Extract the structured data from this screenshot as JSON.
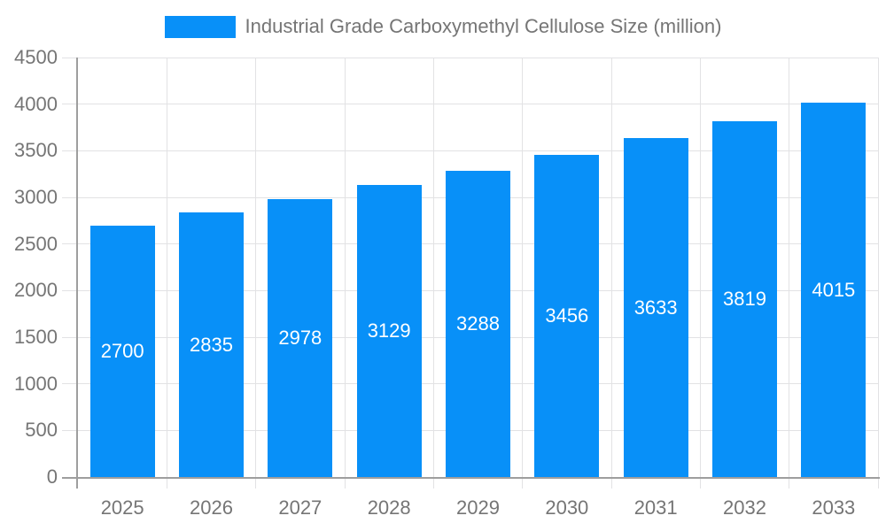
{
  "chart_data": {
    "type": "bar",
    "title": "Industrial Grade Carboxymethyl Cellulose Size (million)",
    "categories": [
      "2025",
      "2026",
      "2027",
      "2028",
      "2029",
      "2030",
      "2031",
      "2032",
      "2033"
    ],
    "values": [
      2700,
      2835,
      2978,
      3129,
      3288,
      3456,
      3633,
      3819,
      4015
    ],
    "ylim": [
      0,
      4500
    ],
    "ytick_step": 500,
    "grid": true,
    "legend_position": "top",
    "bar_labels_inside": true,
    "colors": {
      "bar": "#0890F8",
      "bar_label": "#ffffff",
      "axis_text": "#757575",
      "grid_line": "#E2E2E4",
      "axis_line": "#9E9E9E",
      "background": "#ffffff"
    }
  }
}
